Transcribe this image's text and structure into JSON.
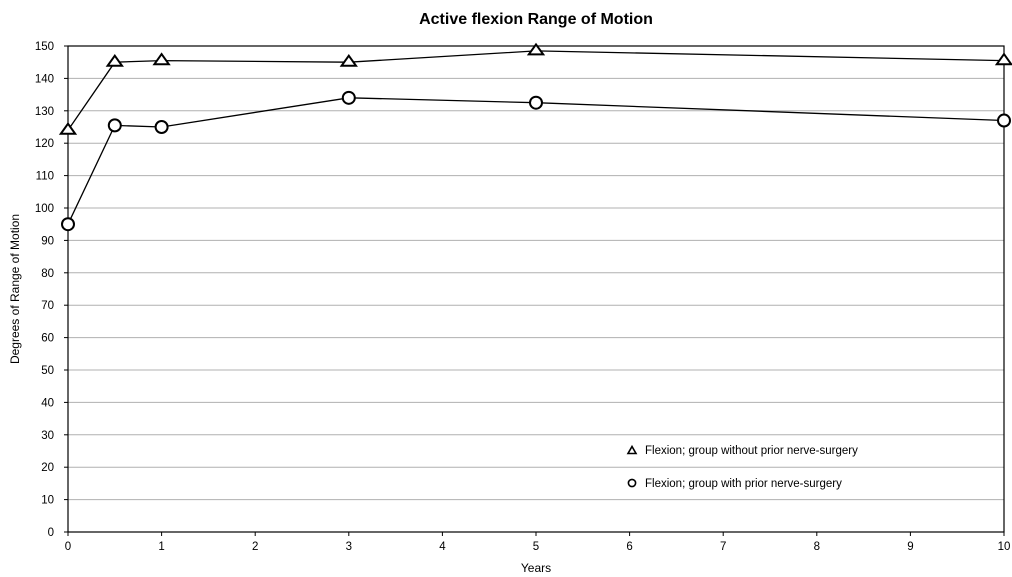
{
  "chart_data": {
    "type": "line",
    "title": "Active flexion Range of Motion",
    "xlabel": "Years",
    "ylabel": "Degrees of Range of Motion",
    "xlim": [
      0,
      10
    ],
    "ylim": [
      0,
      150
    ],
    "x_ticks": [
      "0",
      "1",
      "2",
      "3",
      "4",
      "5",
      "6",
      "7",
      "8",
      "9",
      "10"
    ],
    "y_ticks": [
      "0",
      "10",
      "20",
      "30",
      "40",
      "50",
      "60",
      "70",
      "80",
      "90",
      "100",
      "110",
      "120",
      "130",
      "140",
      "150"
    ],
    "grid": "horizontal",
    "legend_position": "bottom-right",
    "series": [
      {
        "name": "Flexion; group without prior nerve-surgery",
        "marker": "triangle",
        "x": [
          0,
          0.5,
          1,
          3,
          5,
          10
        ],
        "y": [
          124,
          145,
          145.5,
          145,
          148.5,
          145.5
        ]
      },
      {
        "name": "Flexion; group with prior nerve-surgery",
        "marker": "circle",
        "x": [
          0,
          0.5,
          1,
          3,
          5,
          10
        ],
        "y": [
          95,
          125.5,
          125,
          134,
          132.5,
          127
        ]
      }
    ]
  }
}
